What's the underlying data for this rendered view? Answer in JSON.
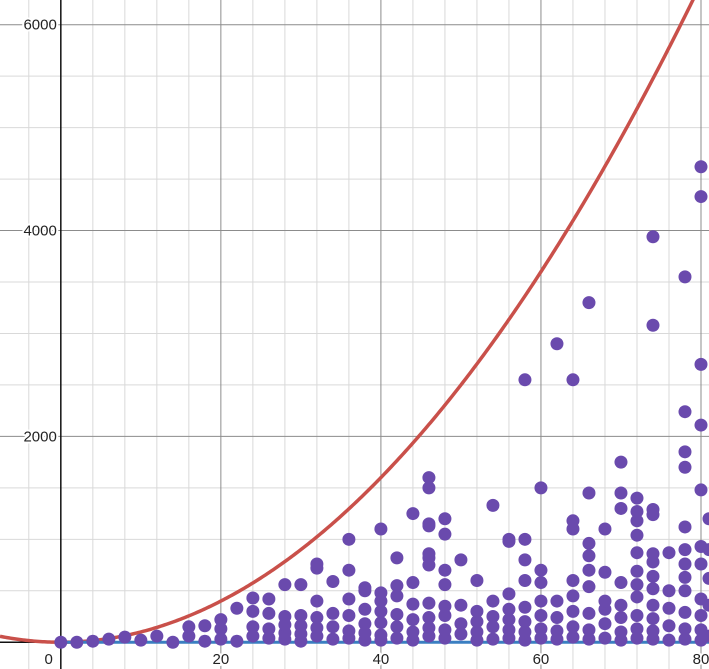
{
  "chart_data": {
    "type": "scatter",
    "title": "",
    "xlabel": "",
    "ylabel": "",
    "xlim": [
      -7.6,
      81
    ],
    "ylim": [
      -260,
      6240
    ],
    "grid": true,
    "x_ticks": [
      {
        "value": 0,
        "label": "0"
      },
      {
        "value": 20,
        "label": "20"
      },
      {
        "value": 40,
        "label": "40"
      },
      {
        "value": 60,
        "label": "60"
      },
      {
        "value": 80,
        "label": "80"
      }
    ],
    "y_ticks": [
      {
        "value": 2000,
        "label": "2000"
      },
      {
        "value": 4000,
        "label": "4000"
      },
      {
        "value": 6000,
        "label": "6000"
      }
    ],
    "colors": {
      "points": "#6a4aad",
      "curve": "#c9504a",
      "baseline": "#3a7fc1",
      "grid_minor": "#d9d9d9",
      "grid_major": "#8c8c8c",
      "axis": "#111111"
    },
    "curves": [
      {
        "kind": "quadratic",
        "a": 1.0,
        "h": 0,
        "k": 0,
        "color": "#c9504a"
      },
      {
        "kind": "constant",
        "y": 0,
        "color": "#3a7fc1"
      }
    ],
    "points": [
      [
        0,
        0
      ],
      [
        2,
        0
      ],
      [
        4,
        10
      ],
      [
        6,
        30
      ],
      [
        8,
        50
      ],
      [
        10,
        20
      ],
      [
        12,
        60
      ],
      [
        14,
        0
      ],
      [
        16,
        60
      ],
      [
        16,
        150
      ],
      [
        18,
        10
      ],
      [
        18,
        160
      ],
      [
        20,
        30
      ],
      [
        20,
        130
      ],
      [
        20,
        220
      ],
      [
        22,
        10
      ],
      [
        22,
        330
      ],
      [
        24,
        60
      ],
      [
        24,
        150
      ],
      [
        24,
        300
      ],
      [
        24,
        430
      ],
      [
        26,
        40
      ],
      [
        26,
        130
      ],
      [
        26,
        280
      ],
      [
        26,
        420
      ],
      [
        28,
        30
      ],
      [
        28,
        90
      ],
      [
        28,
        170
      ],
      [
        28,
        250
      ],
      [
        28,
        560
      ],
      [
        30,
        10
      ],
      [
        30,
        80
      ],
      [
        30,
        160
      ],
      [
        30,
        260
      ],
      [
        30,
        560
      ],
      [
        32,
        60
      ],
      [
        32,
        140
      ],
      [
        32,
        240
      ],
      [
        32,
        400
      ],
      [
        32,
        720
      ],
      [
        32,
        760
      ],
      [
        34,
        30
      ],
      [
        34,
        150
      ],
      [
        34,
        280
      ],
      [
        34,
        590
      ],
      [
        36,
        40
      ],
      [
        36,
        110
      ],
      [
        36,
        260
      ],
      [
        36,
        420
      ],
      [
        36,
        700
      ],
      [
        36,
        1000
      ],
      [
        38,
        20
      ],
      [
        38,
        90
      ],
      [
        38,
        180
      ],
      [
        38,
        320
      ],
      [
        38,
        500
      ],
      [
        38,
        530
      ],
      [
        40,
        20
      ],
      [
        40,
        70
      ],
      [
        40,
        190
      ],
      [
        40,
        300
      ],
      [
        40,
        400
      ],
      [
        40,
        480
      ],
      [
        40,
        1100
      ],
      [
        42,
        40
      ],
      [
        42,
        150
      ],
      [
        42,
        270
      ],
      [
        42,
        450
      ],
      [
        42,
        550
      ],
      [
        42,
        820
      ],
      [
        44,
        20
      ],
      [
        44,
        100
      ],
      [
        44,
        220
      ],
      [
        44,
        370
      ],
      [
        44,
        580
      ],
      [
        44,
        1250
      ],
      [
        46,
        60
      ],
      [
        46,
        140
      ],
      [
        46,
        240
      ],
      [
        46,
        380
      ],
      [
        46,
        750
      ],
      [
        46,
        820
      ],
      [
        46,
        860
      ],
      [
        46,
        1130
      ],
      [
        46,
        1150
      ],
      [
        46,
        1500
      ],
      [
        46,
        1600
      ],
      [
        48,
        40
      ],
      [
        48,
        120
      ],
      [
        48,
        260
      ],
      [
        48,
        350
      ],
      [
        48,
        560
      ],
      [
        48,
        700
      ],
      [
        48,
        1050
      ],
      [
        48,
        1200
      ],
      [
        50,
        80
      ],
      [
        50,
        180
      ],
      [
        50,
        360
      ],
      [
        50,
        800
      ],
      [
        52,
        20
      ],
      [
        52,
        100
      ],
      [
        52,
        200
      ],
      [
        52,
        300
      ],
      [
        52,
        600
      ],
      [
        54,
        30
      ],
      [
        54,
        150
      ],
      [
        54,
        250
      ],
      [
        54,
        400
      ],
      [
        54,
        1330
      ],
      [
        56,
        40
      ],
      [
        56,
        120
      ],
      [
        56,
        220
      ],
      [
        56,
        320
      ],
      [
        56,
        470
      ],
      [
        56,
        980
      ],
      [
        56,
        1000
      ],
      [
        58,
        20
      ],
      [
        58,
        100
      ],
      [
        58,
        200
      ],
      [
        58,
        340
      ],
      [
        58,
        600
      ],
      [
        58,
        800
      ],
      [
        58,
        1000
      ],
      [
        58,
        2550
      ],
      [
        60,
        40
      ],
      [
        60,
        130
      ],
      [
        60,
        260
      ],
      [
        60,
        400
      ],
      [
        60,
        580
      ],
      [
        60,
        700
      ],
      [
        60,
        1500
      ],
      [
        62,
        30
      ],
      [
        62,
        110
      ],
      [
        62,
        240
      ],
      [
        62,
        400
      ],
      [
        62,
        2900
      ],
      [
        64,
        50
      ],
      [
        64,
        150
      ],
      [
        64,
        300
      ],
      [
        64,
        450
      ],
      [
        64,
        600
      ],
      [
        64,
        1100
      ],
      [
        64,
        1180
      ],
      [
        64,
        2550
      ],
      [
        66,
        30
      ],
      [
        66,
        120
      ],
      [
        66,
        280
      ],
      [
        66,
        540
      ],
      [
        66,
        700
      ],
      [
        66,
        840
      ],
      [
        66,
        960
      ],
      [
        66,
        1450
      ],
      [
        66,
        3300
      ],
      [
        68,
        40
      ],
      [
        68,
        180
      ],
      [
        68,
        320
      ],
      [
        68,
        400
      ],
      [
        68,
        680
      ],
      [
        68,
        1100
      ],
      [
        70,
        20
      ],
      [
        70,
        100
      ],
      [
        70,
        240
      ],
      [
        70,
        360
      ],
      [
        70,
        580
      ],
      [
        70,
        1300
      ],
      [
        70,
        1450
      ],
      [
        70,
        1750
      ],
      [
        72,
        40
      ],
      [
        72,
        130
      ],
      [
        72,
        260
      ],
      [
        72,
        440
      ],
      [
        72,
        560
      ],
      [
        72,
        690
      ],
      [
        72,
        870
      ],
      [
        72,
        1040
      ],
      [
        72,
        1180
      ],
      [
        72,
        1270
      ],
      [
        72,
        1400
      ],
      [
        74,
        30
      ],
      [
        74,
        110
      ],
      [
        74,
        230
      ],
      [
        74,
        360
      ],
      [
        74,
        520
      ],
      [
        74,
        640
      ],
      [
        74,
        780
      ],
      [
        74,
        860
      ],
      [
        74,
        1240
      ],
      [
        74,
        1290
      ],
      [
        74,
        3080
      ],
      [
        74,
        3940
      ],
      [
        76,
        20
      ],
      [
        76,
        160
      ],
      [
        76,
        330
      ],
      [
        76,
        500
      ],
      [
        76,
        870
      ],
      [
        78,
        30
      ],
      [
        78,
        130
      ],
      [
        78,
        290
      ],
      [
        78,
        500
      ],
      [
        78,
        630
      ],
      [
        78,
        760
      ],
      [
        78,
        900
      ],
      [
        78,
        1120
      ],
      [
        78,
        1700
      ],
      [
        78,
        1850
      ],
      [
        78,
        2240
      ],
      [
        78,
        3550
      ],
      [
        80,
        20
      ],
      [
        80,
        120
      ],
      [
        80,
        260
      ],
      [
        80,
        420
      ],
      [
        80,
        760
      ],
      [
        80,
        930
      ],
      [
        80,
        1480
      ],
      [
        80,
        2110
      ],
      [
        80,
        2700
      ],
      [
        80,
        4330
      ],
      [
        80,
        4620
      ],
      [
        81,
        60
      ],
      [
        81,
        360
      ],
      [
        81,
        620
      ],
      [
        81,
        900
      ],
      [
        81,
        1200
      ]
    ]
  }
}
